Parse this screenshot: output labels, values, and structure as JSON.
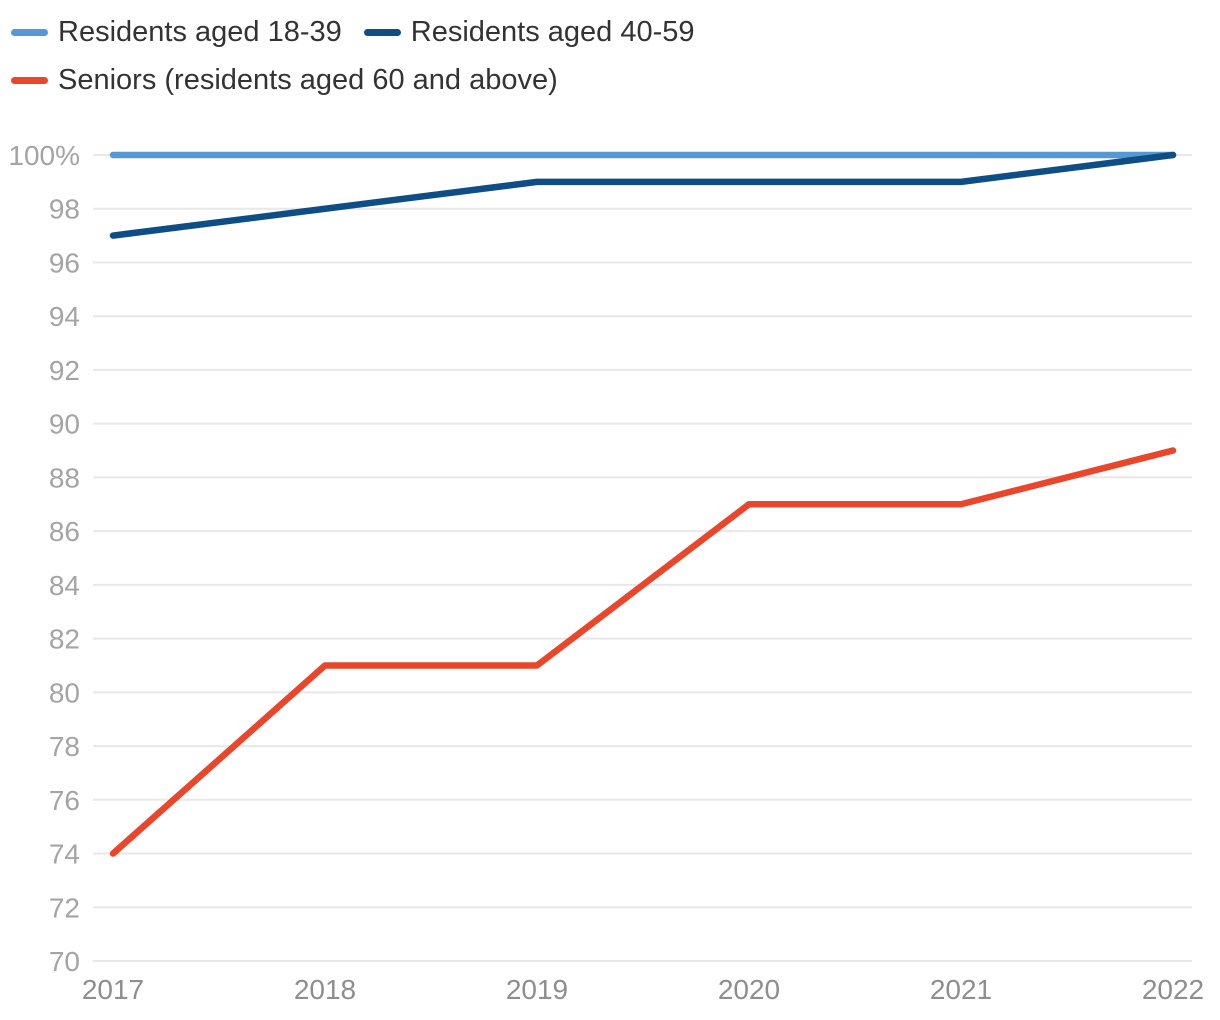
{
  "chart_data": {
    "type": "line",
    "title": "",
    "x_labels": [
      "2017",
      "2018",
      "2019",
      "2020",
      "2021",
      "2022"
    ],
    "series": [
      {
        "name": "Residents aged 18-39",
        "color": "#5697d6",
        "values": [
          100,
          100,
          100,
          100,
          100,
          100
        ]
      },
      {
        "name": "Residents aged 40-59",
        "color": "#0e4e85",
        "values": [
          97,
          98,
          99,
          99,
          99,
          100
        ]
      },
      {
        "name": "Seniors (residents aged 60 and above)",
        "color": "#e8472c",
        "values": [
          74,
          81,
          81,
          87,
          87,
          89
        ]
      }
    ],
    "ylim": [
      70,
      100
    ],
    "ytick_step": 2,
    "ytick_top_label": "100%",
    "grid": true,
    "legend_position": "top-left",
    "styles": {
      "grid_color": "#e8e8e8",
      "y_tick_color": "#a4a4a4",
      "x_tick_color": "#8e8e8e",
      "legend_text_color": "#333333"
    }
  }
}
